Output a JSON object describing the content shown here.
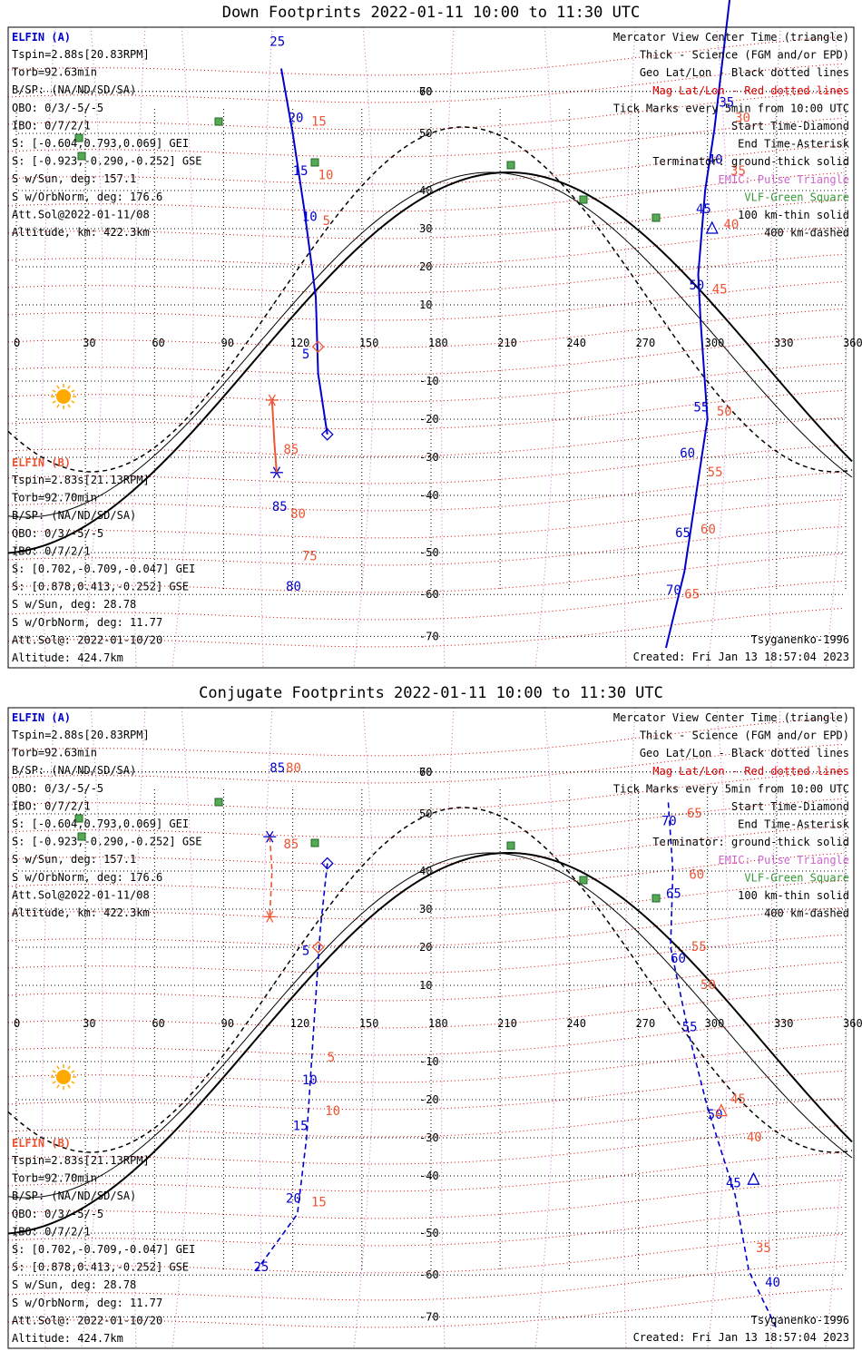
{
  "colors": {
    "elfin_a": "#0000cc",
    "elfin_b": "#ee5533",
    "mag_grid": "#dd0000",
    "geo_grid": "#000000",
    "pulse": "#cc66cc",
    "vlf": "#339933",
    "sun": "#ffaa00",
    "coast": "#a0a0a0"
  },
  "common": {
    "x_ticks": [
      "0",
      "30",
      "60",
      "90",
      "120",
      "150",
      "180",
      "210",
      "240",
      "270",
      "300",
      "330",
      "360"
    ],
    "y_ticks": [
      "70",
      "60",
      "50",
      "40",
      "30",
      "20",
      "10",
      "-10",
      "-20",
      "-30",
      "-40",
      "-50",
      "-60",
      "-70"
    ],
    "legend": [
      {
        "text": "Mercator View Center Time (triangle)",
        "color": "#000000"
      },
      {
        "text": "Thick - Science (FGM and/or EPD)",
        "color": "#000000"
      },
      {
        "text": "Geo Lat/Lon - Black dotted lines",
        "color": "#000000"
      },
      {
        "text": "Mag Lat/Lon - Red dotted lines",
        "color": "#dd0000"
      },
      {
        "text": "Tick Marks every 5min from 10:00 UTC",
        "color": "#000000"
      },
      {
        "text": "Start Time-Diamond",
        "color": "#000000"
      },
      {
        "text": "End Time-Asterisk",
        "color": "#000000"
      },
      {
        "text": "Terminator: ground-thick solid",
        "color": "#000000"
      },
      {
        "text": "EMIC: Pulse Triangle",
        "color": "#cc66cc"
      },
      {
        "text": "VLF-Green Square",
        "color": "#339933"
      },
      {
        "text": "100 km-thin solid",
        "color": "#000000"
      },
      {
        "text": "400 km-dashed",
        "color": "#000000"
      }
    ],
    "elfin_a_header": "ELFIN (A)",
    "elfin_a_info": [
      "Tspin=2.88s[20.83RPM]",
      "Torb=92.63min",
      "B/SP: (NA/ND/SD/SA)",
      "OBO: 0/3/-5/-5",
      "IBO: 0/7/2/1",
      "S: [-0.604,0.793,0.069] GEI",
      "S: [-0.923,-0.290,-0.252] GSE",
      "S w/Sun, deg: 157.1",
      "S w/OrbNorm, deg: 176.6",
      "Att.Sol@2022-01-11/08",
      "Altitude, km: 422.3km"
    ],
    "elfin_b_header": "ELFIN (B)",
    "elfin_b_info": [
      "Tspin=2.83s[21.13RPM]",
      "Torb=92.70min",
      "B/SP: (NA/ND/SD/SA)",
      "OBO: 0/3/-5/-5",
      "IBO: 0/7/2/1",
      "S: [0.702,-0.709,-0.047] GEI",
      "S: [0.878,0.413,-0.252] GSE",
      "S w/Sun, deg: 28.78",
      "S w/OrbNorm, deg: 11.77",
      "Att.Sol@: 2022-01-10/20",
      "Altitude: 424.7km"
    ],
    "model": "Tsyganenko-1996",
    "created": "Created: Fri Jan 13 18:57:04 2023"
  },
  "chart_data": [
    {
      "type": "scatter",
      "title": "Down Footprints 2022-01-11 10:00 to 11:30 UTC",
      "xlim": [
        0,
        360
      ],
      "ylim": [
        -70,
        70
      ],
      "series": [
        {
          "name": "ELFIN (A)",
          "color": "#0000cc",
          "segments": [
            [
              [
                135,
                -24
              ],
              [
                131,
                -8
              ],
              [
                130,
                12
              ],
              [
                125,
                35
              ],
              [
                120,
                55
              ],
              [
                115,
                72
              ]
            ],
            [
              [
                310,
                92
              ],
              [
                303,
                56
              ],
              [
                299,
                40
              ],
              [
                296,
                18
              ],
              [
                297,
                6
              ],
              [
                300,
                -20
              ],
              [
                295,
                -40
              ],
              [
                290,
                -60
              ],
              [
                282,
                -80
              ]
            ]
          ],
          "labels": [
            [
              "25",
              110,
              78
            ],
            [
              "20",
              118,
              58
            ],
            [
              "15",
              120,
              44
            ],
            [
              "10",
              124,
              32
            ],
            [
              "5",
              124,
              -4
            ],
            [
              "85",
              111,
              -44
            ],
            [
              "80",
              117,
              -65
            ],
            [
              "35",
              305,
              62
            ],
            [
              "40",
              300,
              47
            ],
            [
              "45",
              295,
              34
            ],
            [
              "50",
              292,
              14
            ],
            [
              "55",
              294,
              -18
            ],
            [
              "60",
              288,
              -30
            ],
            [
              "65",
              286,
              -51
            ],
            [
              "70",
              282,
              -66
            ]
          ],
          "markers": [
            {
              "kind": "diamond",
              "x": 135,
              "y": -24
            },
            {
              "kind": "asterisk",
              "x": 113,
              "y": -34
            },
            {
              "kind": "triangle",
              "x": 302,
              "y": 30
            }
          ]
        },
        {
          "name": "ELFIN (B)",
          "color": "#ee5533",
          "segments": [
            [
              [
                113,
                -34
              ],
              [
                112,
                -26
              ],
              [
                111,
                -15
              ]
            ],
            [
              [
                131,
                -1
              ]
            ]
          ],
          "labels": [
            [
              "15",
              128,
              57
            ],
            [
              "10",
              131,
              43
            ],
            [
              "5",
              133,
              31
            ],
            [
              "85",
              116,
              -29
            ],
            [
              "80",
              119,
              -46
            ],
            [
              "75",
              124,
              -57
            ],
            [
              "45",
              302,
              13
            ],
            [
              "50",
              304,
              -19
            ],
            [
              "55",
              300,
              -35
            ],
            [
              "60",
              297,
              -50
            ],
            [
              "65",
              290,
              -67
            ],
            [
              "30",
              312,
              58
            ],
            [
              "35",
              310,
              44
            ],
            [
              "40",
              307,
              30
            ]
          ],
          "markers": [
            {
              "kind": "diamond",
              "x": 131,
              "y": -1
            },
            {
              "kind": "asterisk",
              "x": 111,
              "y": -15
            }
          ]
        }
      ]
    },
    {
      "type": "scatter",
      "title": "Conjugate Footprints 2022-01-11 10:00 to 11:30 UTC",
      "xlim": [
        0,
        360
      ],
      "ylim": [
        -70,
        70
      ],
      "series": [
        {
          "name": "ELFIN (A)",
          "color": "#0000cc",
          "segments": [
            [
              [
                135,
                42
              ],
              [
                132,
                25
              ],
              [
                129,
                -2
              ],
              [
                126,
                -30
              ],
              [
                122,
                -50
              ],
              [
                104,
                -65
              ]
            ],
            [
              [
                283,
                58
              ],
              [
                285,
                40
              ],
              [
                284,
                20
              ],
              [
                292,
                -3
              ],
              [
                300,
                -22
              ],
              [
                312,
                -45
              ],
              [
                318,
                -65
              ],
              [
                330,
                -80
              ]
            ]
          ],
          "labels": [
            [
              "85",
              110,
              66
            ],
            [
              "5",
              124,
              18
            ],
            [
              "10",
              124,
              -16
            ],
            [
              "15",
              120,
              -28
            ],
            [
              "20",
              117,
              -47
            ],
            [
              "25",
              103,
              -65
            ],
            [
              "70",
              280,
              52
            ],
            [
              "65",
              282,
              33
            ],
            [
              "60",
              284,
              16
            ],
            [
              "55",
              289,
              -2
            ],
            [
              "50",
              300,
              -25
            ],
            [
              "45",
              308,
              -43
            ],
            [
              "40",
              325,
              -69
            ]
          ],
          "markers": [
            {
              "kind": "diamond",
              "x": 135,
              "y": 42
            },
            {
              "kind": "asterisk",
              "x": 110,
              "y": 49
            },
            {
              "kind": "triangle",
              "x": 320,
              "y": -41
            }
          ]
        },
        {
          "name": "ELFIN (B)",
          "color": "#ee5533",
          "segments": [
            [
              [
                110,
                49
              ],
              [
                111,
                40
              ],
              [
                110,
                28
              ]
            ]
          ],
          "labels": [
            [
              "80",
              117,
              66
            ],
            [
              "85",
              116,
              46
            ],
            [
              "5",
              135,
              -10
            ],
            [
              "10",
              134,
              -24
            ],
            [
              "15",
              128,
              -48
            ],
            [
              "65",
              291,
              54
            ],
            [
              "60",
              292,
              38
            ],
            [
              "55",
              293,
              19
            ],
            [
              "50",
              297,
              9
            ],
            [
              "45",
              310,
              -21
            ],
            [
              "40",
              317,
              -31
            ],
            [
              "35",
              321,
              -60
            ]
          ],
          "markers": [
            {
              "kind": "diamond",
              "x": 131,
              "y": 20
            },
            {
              "kind": "asterisk",
              "x": 110,
              "y": 28
            },
            {
              "kind": "triangle",
              "x": 306,
              "y": -23
            }
          ]
        }
      ]
    }
  ]
}
